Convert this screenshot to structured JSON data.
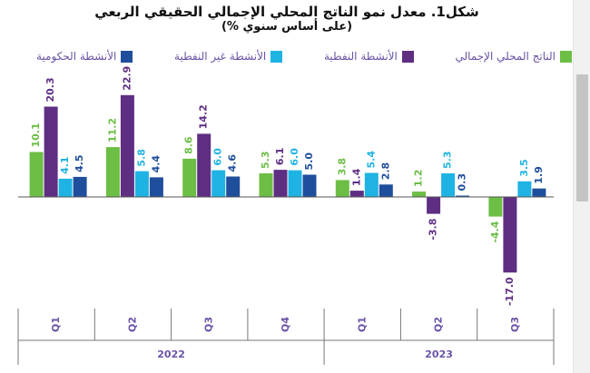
{
  "chart_data": {
    "type": "bar",
    "title": "شكل1. معدل نمو الناتج المحلي الإجمالي الحقيقي الربعي",
    "subtitle": "(على أساس سنوي %)",
    "categories": [
      "Q1",
      "Q2",
      "Q3",
      "Q4",
      "Q1",
      "Q2",
      "Q3"
    ],
    "year_groups": [
      {
        "label": "2022",
        "count": 4
      },
      {
        "label": "2023",
        "count": 3
      }
    ],
    "series": [
      {
        "name": "الناتج المحلي الإجمالي",
        "color": "#6cbe45",
        "values": [
          10.1,
          11.2,
          8.6,
          5.3,
          3.8,
          1.2,
          -4.4
        ]
      },
      {
        "name": "الأنشطة النفطية",
        "color": "#5e2e83",
        "values": [
          20.3,
          22.9,
          14.2,
          6.1,
          1.4,
          -3.8,
          -17.0
        ]
      },
      {
        "name": "الأنشطة غير النفطية",
        "color": "#1fb3e3",
        "values": [
          4.1,
          5.8,
          6.0,
          6.0,
          5.4,
          5.3,
          3.5
        ]
      },
      {
        "name": "الأنشطة الحكومية",
        "color": "#1f4e9c",
        "values": [
          4.5,
          4.4,
          4.6,
          5.0,
          2.8,
          0.3,
          1.9
        ]
      }
    ],
    "data_labels": [
      [
        "10.1",
        "11.2",
        "8.6",
        "5.3",
        "3.8",
        "1.2",
        "-4.4"
      ],
      [
        "20.3",
        "22.9",
        "14.2",
        "6.1",
        "1.4",
        "-3.8",
        "-17.0"
      ],
      [
        "4.1",
        "5.8",
        "6.0",
        "6.0",
        "5.4",
        "5.3",
        "3.5"
      ],
      [
        "4.5",
        "4.4",
        "4.6",
        "5.0",
        "2.8",
        "0.3",
        "1.9"
      ]
    ],
    "ylim": [
      -20,
      30
    ],
    "grid": false,
    "legend_position": "top"
  }
}
